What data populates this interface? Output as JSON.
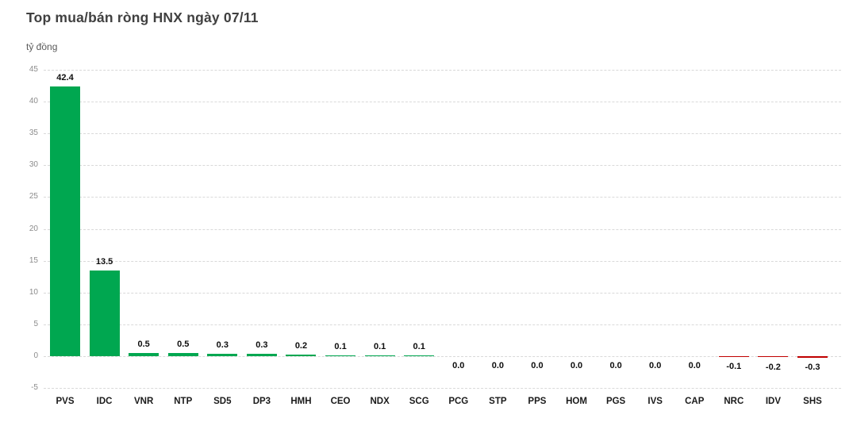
{
  "header": {
    "title": "Top mua/bán ròng HNX ngày 07/11",
    "unit_label": "tỷ đồng"
  },
  "chart_data": {
    "type": "bar",
    "title": "Top mua/bán ròng HNX ngày 07/11",
    "ylabel": "tỷ đồng",
    "xlabel": "",
    "categories": [
      "PVS",
      "IDC",
      "VNR",
      "NTP",
      "SD5",
      "DP3",
      "HMH",
      "CEO",
      "NDX",
      "SCG",
      "PCG",
      "STP",
      "PPS",
      "HOM",
      "PGS",
      "IVS",
      "CAP",
      "NRC",
      "IDV",
      "SHS"
    ],
    "values": [
      42.4,
      13.5,
      0.5,
      0.5,
      0.3,
      0.3,
      0.2,
      0.1,
      0.1,
      0.1,
      0.0,
      0.0,
      0.0,
      0.0,
      0.0,
      0.0,
      0.0,
      -0.1,
      -0.2,
      -0.3
    ],
    "value_labels": [
      "42.4",
      "13.5",
      "0.5",
      "0.5",
      "0.3",
      "0.3",
      "0.2",
      "0.1",
      "0.1",
      "0.1",
      "0.0",
      "0.0",
      "0.0",
      "0.0",
      "0.0",
      "0.0",
      "0.0",
      "-0.1",
      "-0.2",
      "-0.3"
    ],
    "ylim": [
      -5,
      45
    ],
    "yticks": [
      45,
      40,
      35,
      30,
      25,
      20,
      15,
      10,
      5,
      0,
      -5
    ],
    "grid": true,
    "legend": "none",
    "colors": {
      "positive": "#00a750",
      "negative": "#c00000",
      "gridline": "#d9d9d9",
      "title_text": "#404040",
      "tick_text": "#8c8c8c",
      "label_text": "#0d0d0d"
    }
  }
}
